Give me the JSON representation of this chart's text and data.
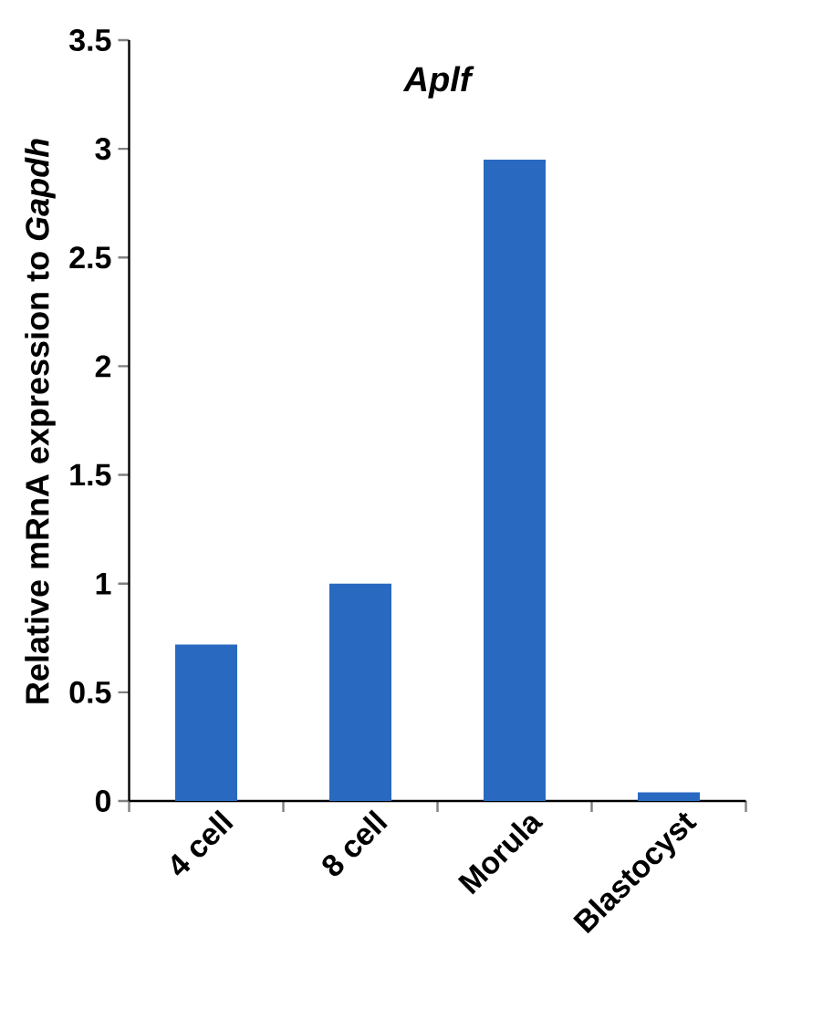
{
  "chart_data": {
    "type": "bar",
    "title": "Aplf",
    "ylabel": "Relative mRnA expression to *Gapdh*",
    "categories": [
      "4 cell",
      "8 cell",
      "Morula",
      "Blastocyst"
    ],
    "values": [
      0.72,
      1.0,
      2.95,
      0.04
    ],
    "color": "#2a69c0",
    "ylim": [
      0,
      3.5
    ],
    "yticks": [
      0,
      0.5,
      1,
      1.5,
      2,
      2.5,
      3,
      3.5
    ],
    "grid": false
  }
}
